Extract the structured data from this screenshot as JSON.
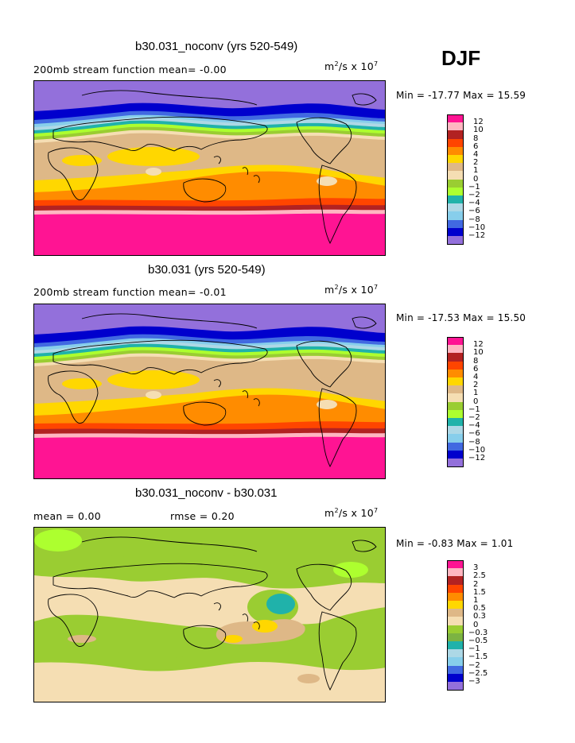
{
  "season": "DJF",
  "panels": [
    {
      "title": "b30.031_noconv (yrs 520-549)",
      "left_label": "200mb stream function  mean=  -0.00",
      "units_base": "m",
      "units_exp1": "2",
      "units_mid": "/s x 10",
      "units_exp2": "7",
      "minmax": "Min = -17.77 Max =  15.59",
      "colorbar": {
        "labels": [
          "12",
          "10",
          "8",
          "6",
          "4",
          "2",
          "1",
          "0",
          "-1",
          "-2",
          "-4",
          "-6",
          "-8",
          "-10",
          "-12"
        ],
        "colors": [
          "#ff1493",
          "#ffb6c1",
          "#b22222",
          "#ff4500",
          "#ff8c00",
          "#ffd700",
          "#deb887",
          "#f5deb3",
          "#9acd32",
          "#adff2f",
          "#20b2aa",
          "#add8e6",
          "#87ceeb",
          "#4169e1",
          "#0000cd",
          "#9370db"
        ]
      }
    },
    {
      "title": "b30.031 (yrs 520-549)",
      "left_label": "200mb stream function  mean=  -0.01",
      "units_base": "m",
      "units_exp1": "2",
      "units_mid": "/s x 10",
      "units_exp2": "7",
      "minmax": "Min = -17.53 Max =  15.50",
      "colorbar": {
        "labels": [
          "12",
          "10",
          "8",
          "6",
          "4",
          "2",
          "1",
          "0",
          "-1",
          "-2",
          "-4",
          "-6",
          "-8",
          "-10",
          "-12"
        ],
        "colors": [
          "#ff1493",
          "#ffb6c1",
          "#b22222",
          "#ff4500",
          "#ff8c00",
          "#ffd700",
          "#deb887",
          "#f5deb3",
          "#9acd32",
          "#adff2f",
          "#20b2aa",
          "#add8e6",
          "#87ceeb",
          "#4169e1",
          "#0000cd",
          "#9370db"
        ]
      }
    },
    {
      "title": "b30.031_noconv - b30.031",
      "left_label": "mean =    0.00",
      "mid_label": "rmse =    0.20",
      "units_base": "m",
      "units_exp1": "2",
      "units_mid": "/s x 10",
      "units_exp2": "7",
      "minmax": "Min =  -0.83 Max =   1.01",
      "colorbar": {
        "labels": [
          "3",
          "2.5",
          "2",
          "1.5",
          "1",
          "0.5",
          "0.3",
          "0",
          "-0.3",
          "-0.5",
          "-1",
          "-1.5",
          "-2",
          "-2.5",
          "-3"
        ],
        "colors": [
          "#ff1493",
          "#ffb6c1",
          "#b22222",
          "#ff4500",
          "#ff8c00",
          "#ffd700",
          "#deb887",
          "#f5deb3",
          "#9acd32",
          "#7cb342",
          "#20b2aa",
          "#add8e6",
          "#87ceeb",
          "#4169e1",
          "#0000cd",
          "#9370db"
        ]
      }
    }
  ]
}
